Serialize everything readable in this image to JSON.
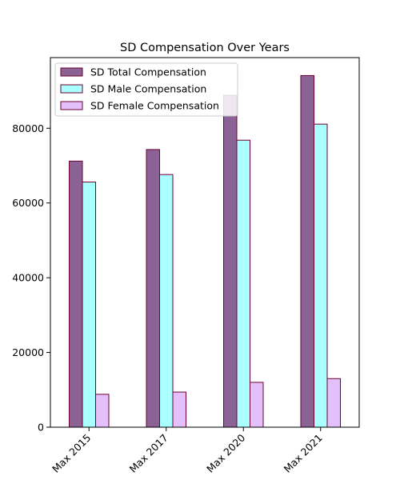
{
  "chart_data": {
    "type": "bar",
    "title": "SD Compensation Over Years",
    "xlabel": "",
    "ylabel": "",
    "categories": [
      "Max 2015",
      "Max 2017",
      "Max 2020",
      "Max 2021"
    ],
    "series": [
      {
        "name": "SD Total Compensation",
        "color": "#8a6293",
        "values": [
          71200,
          74300,
          88800,
          94100
        ]
      },
      {
        "name": "SD Male Compensation",
        "color": "#aaffff",
        "values": [
          65600,
          67600,
          76800,
          81100
        ]
      },
      {
        "name": "SD Female Compensation",
        "color": "#e3c0fa",
        "values": [
          8800,
          9400,
          12000,
          13000
        ]
      }
    ],
    "edge_color": "#6f0033",
    "ylim": [
      0,
      98900
    ],
    "yticks": [
      0,
      20000,
      40000,
      60000,
      80000
    ],
    "ytick_labels": [
      "0",
      "20000",
      "40000",
      "60000",
      "80000"
    ],
    "legend_position": "top-left",
    "grid": false
  }
}
